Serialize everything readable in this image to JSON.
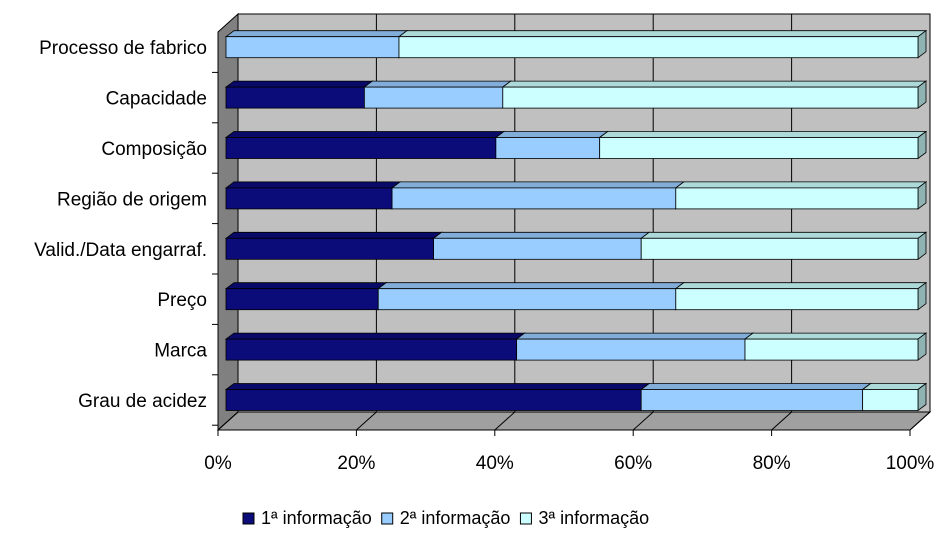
{
  "chart_data": {
    "type": "bar",
    "orientation": "horizontal",
    "stacked": "percent",
    "three_d": true,
    "categories": [
      "Grau de acidez",
      "Marca",
      "Preço",
      "Valid./Data engarraf.",
      "Região de origem",
      "Composição",
      "Capacidade",
      "Processo de fabrico"
    ],
    "series": [
      {
        "name": "1ª informação",
        "color": "#0b0b7a",
        "values": [
          60,
          42,
          22,
          30,
          24,
          39,
          20,
          0
        ]
      },
      {
        "name": "2ª informação",
        "color": "#99ccff",
        "values": [
          32,
          33,
          43,
          30,
          41,
          15,
          20,
          25
        ]
      },
      {
        "name": "3ª informação",
        "color": "#ccffff",
        "values": [
          8,
          25,
          35,
          40,
          35,
          46,
          60,
          75
        ]
      }
    ],
    "x_ticks": [
      "0%",
      "20%",
      "40%",
      "60%",
      "80%",
      "100%"
    ],
    "xlim": [
      0,
      100
    ],
    "grid": true,
    "legend_position": "bottom",
    "colors": {
      "plot_background": "#c0c0c0",
      "side_wall": "#808080",
      "gridline": "#000000"
    }
  }
}
